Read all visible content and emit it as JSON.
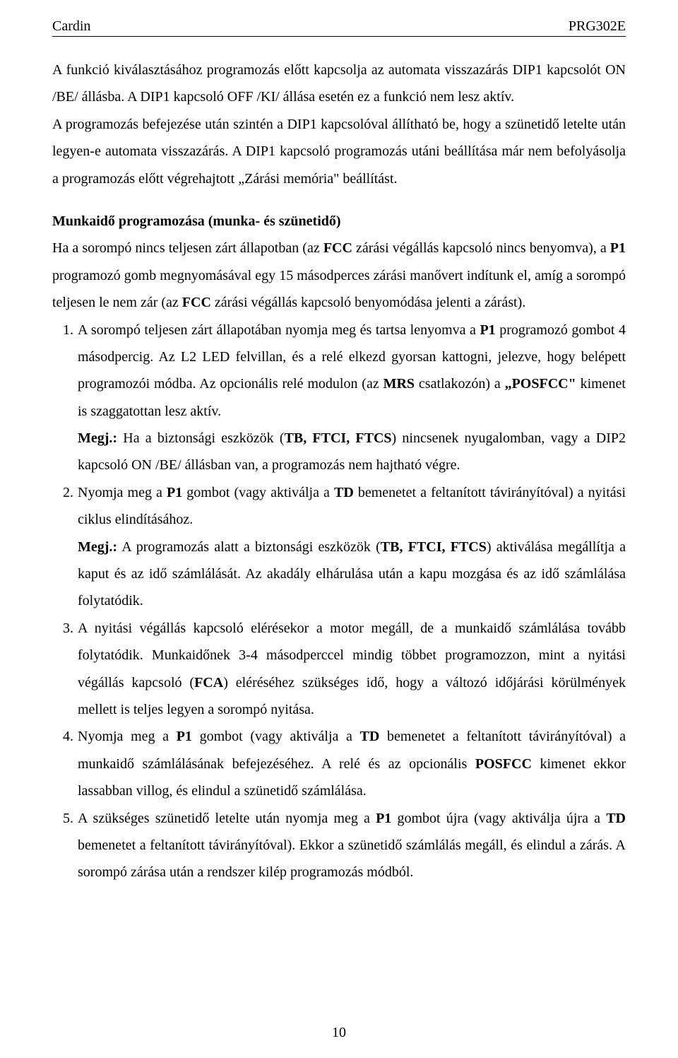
{
  "header": {
    "left": "Cardin",
    "right": "PRG302E"
  },
  "paragraphs": {
    "p1": "A funkció kiválasztásához programozás előtt kapcsolja az automata visszazárás DIP1 kapcsolót ON /BE/ állásba. A DIP1 kapcsoló OFF /KI/ állása esetén ez a funkció nem lesz aktív.",
    "p2": "A programozás befejezése után szintén a DIP1 kapcsolóval állítható be, hogy a szünetidő letelte után legyen-e automata visszazárás. A DIP1 kapcsoló programozás utáni beállítása már nem befolyásolja a programozás előtt végrehajtott „Zárási memória\" beállítást."
  },
  "section": {
    "title": "Munkaidő programozása (munka- és szünetidő)",
    "intro_a": "Ha a sorompó nincs teljesen zárt állapotban (az ",
    "intro_b": " zárási végállás kapcsoló nincs benyomva), a ",
    "intro_c": " programozó gomb megnyomásával egy 15 másodperces zárási manővert indítunk el, amíg a sorompó teljesen le nem zár (az ",
    "intro_d": " zárási végállás kapcsoló benyomódása jelenti a zárást).",
    "fcc": "FCC",
    "p1": "P1"
  },
  "steps": [
    {
      "num": "1.",
      "parts": [
        {
          "t": "A sorompó teljesen zárt állapotában nyomja meg és tartsa lenyomva a "
        },
        {
          "t": "P1",
          "b": true
        },
        {
          "t": " programozó gombot 4 másodpercig. Az L2 LED felvillan, és a relé elkezd gyorsan kattogni, jelezve, hogy belépett programozói módba. Az opcionális relé modulon (az "
        },
        {
          "t": "MRS",
          "b": true
        },
        {
          "t": " csatlakozón) a "
        },
        {
          "t": "„POSFCC\"",
          "b": true
        },
        {
          "t": " kimenet is szaggatottan lesz aktív."
        }
      ],
      "note": [
        {
          "t": "Megj.:",
          "b": true
        },
        {
          "t": " Ha a biztonsági eszközök ("
        },
        {
          "t": "TB, FTCI, FTCS",
          "b": true
        },
        {
          "t": ") nincsenek nyugalomban, vagy a DIP2 kapcsoló ON /BE/ állásban van, a programozás nem hajtható végre."
        }
      ]
    },
    {
      "num": "2.",
      "parts": [
        {
          "t": "Nyomja meg a "
        },
        {
          "t": "P1",
          "b": true
        },
        {
          "t": " gombot (vagy aktiválja a "
        },
        {
          "t": "TD",
          "b": true
        },
        {
          "t": " bemenetet a feltanított távirányítóval) a nyitási ciklus elindításához."
        }
      ],
      "note": [
        {
          "t": "Megj.:",
          "b": true
        },
        {
          "t": " A programozás alatt a biztonsági eszközök ("
        },
        {
          "t": "TB, FTCI, FTCS",
          "b": true
        },
        {
          "t": ") aktiválása megállítja a kaput és az idő számlálását. Az akadály elhárulása után a kapu mozgása és az idő számlálása folytatódik."
        }
      ]
    },
    {
      "num": "3.",
      "parts": [
        {
          "t": "A nyitási végállás kapcsoló elérésekor a motor megáll, de a munkaidő számlálása tovább folytatódik. Munkaidőnek 3-4 másodperccel mindig többet programozzon, mint a nyitási végállás kapcsoló ("
        },
        {
          "t": "FCA",
          "b": true
        },
        {
          "t": ") eléréséhez szükséges idő, hogy a változó időjárási körülmények mellett is teljes legyen a sorompó nyitása."
        }
      ]
    },
    {
      "num": "4.",
      "parts": [
        {
          "t": "Nyomja meg a "
        },
        {
          "t": "P1",
          "b": true
        },
        {
          "t": " gombot (vagy aktiválja a "
        },
        {
          "t": "TD",
          "b": true
        },
        {
          "t": " bemenetet a feltanított távirányítóval) a munkaidő számlálásának befejezéséhez. A relé és az opcionális "
        },
        {
          "t": "POSFCC",
          "b": true
        },
        {
          "t": " kimenet ekkor lassabban villog, és elindul a szünetidő számlálása."
        }
      ]
    },
    {
      "num": "5.",
      "parts": [
        {
          "t": "A szükséges szünetidő letelte után nyomja meg a "
        },
        {
          "t": "P1",
          "b": true
        },
        {
          "t": " gombot újra (vagy aktiválja újra a "
        },
        {
          "t": "TD",
          "b": true
        },
        {
          "t": " bemenetet a feltanított távirányítóval). Ekkor a szünetidő számlálás megáll, és elindul a zárás. A sorompó zárása után a rendszer kilép programozás módból."
        }
      ]
    }
  ],
  "footer": {
    "page_number": "10"
  }
}
